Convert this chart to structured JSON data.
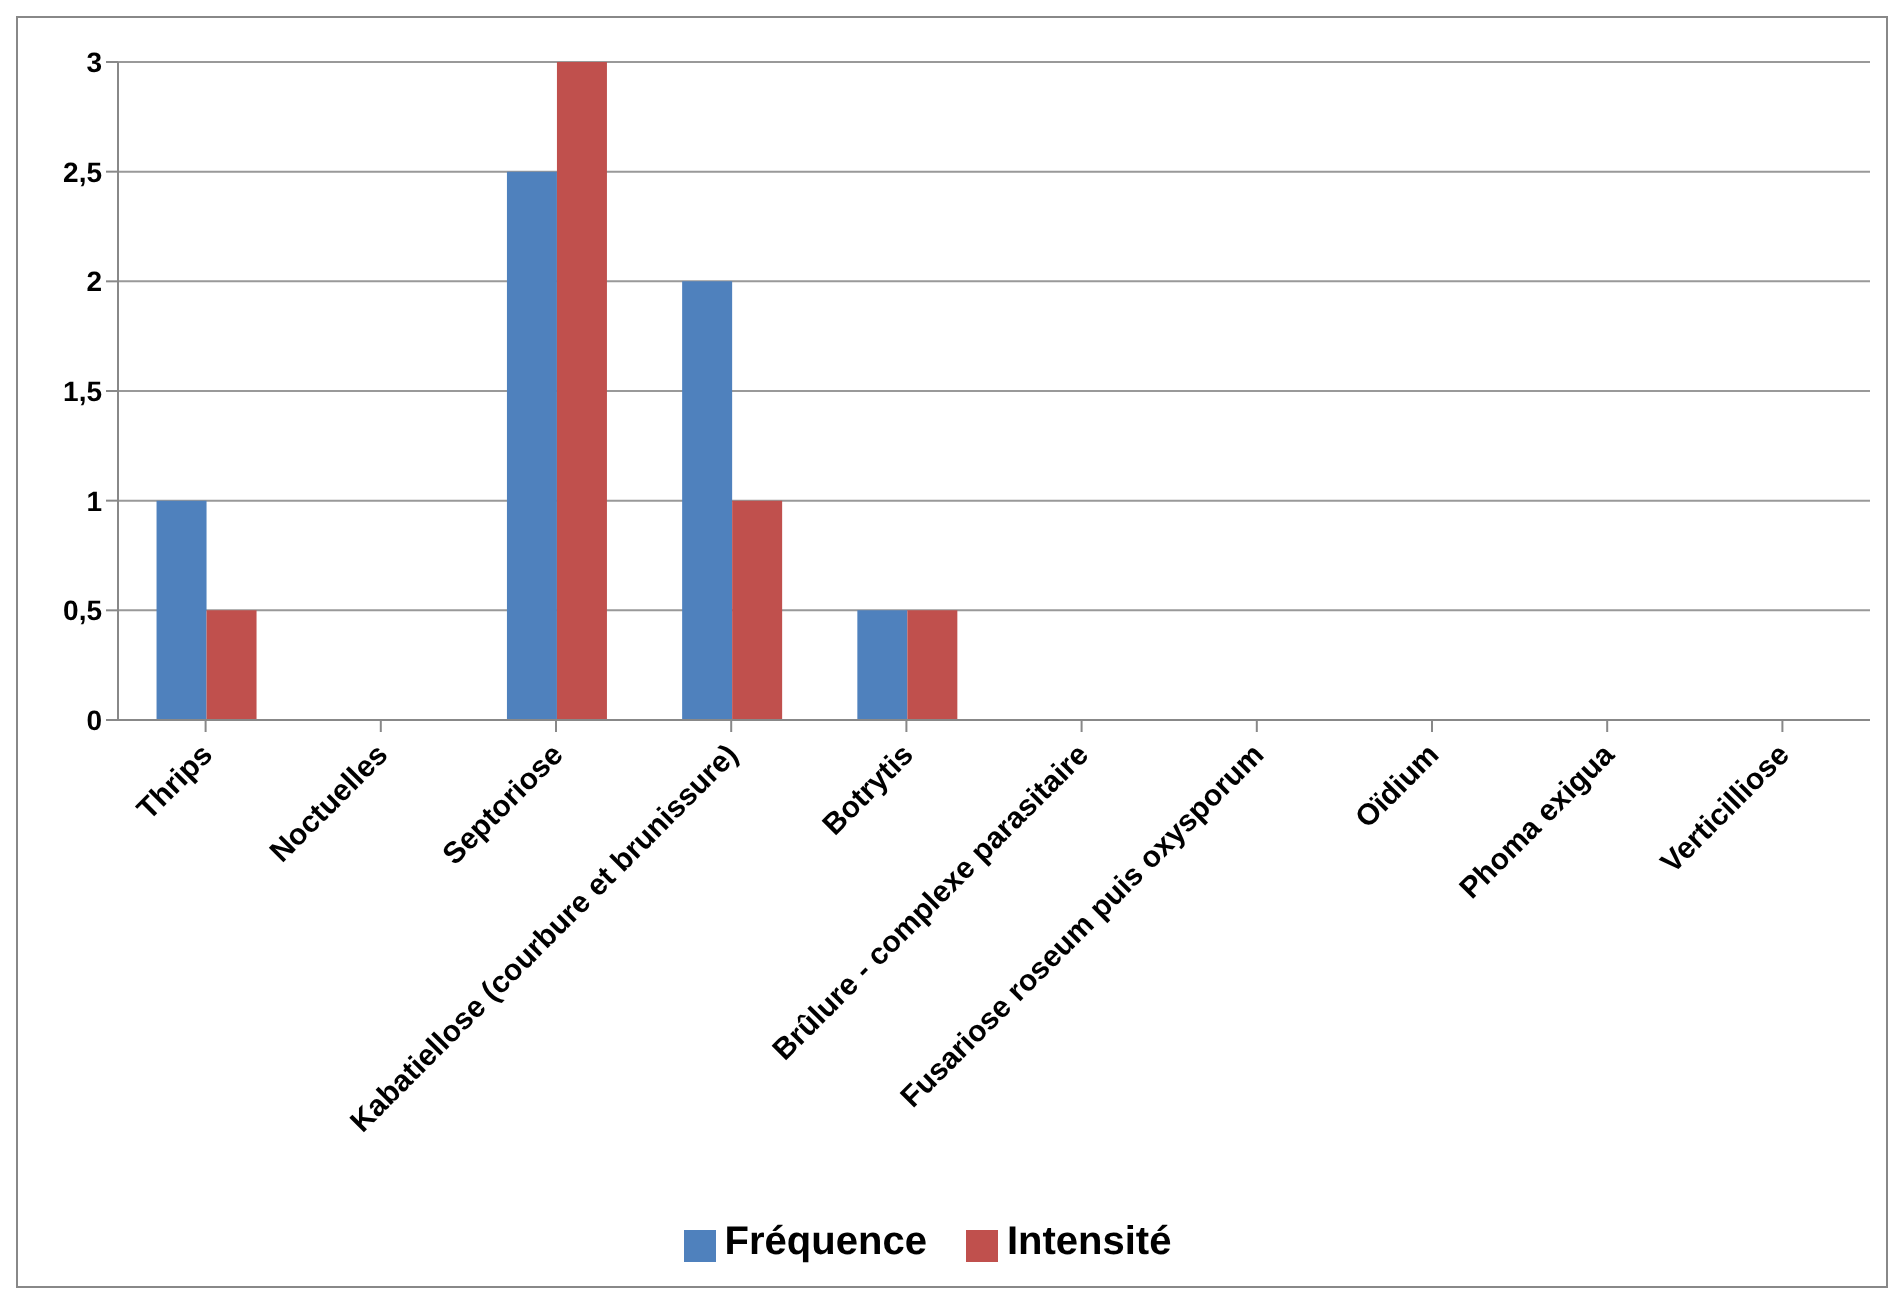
{
  "chart_data": {
    "type": "bar",
    "categories": [
      "Thrips",
      "Noctuelles",
      "Septoriose",
      "Kabatiellose (courbure et brunissure)",
      "Botrytis",
      "Brûlure - complexe parasitaire",
      "Fusariose roseum puis oxysporum",
      "Oïdium",
      "Phoma exigua",
      "Verticilliose"
    ],
    "series": [
      {
        "name": "Fréquence",
        "color": "#4f81bd",
        "values": [
          1,
          0,
          2.5,
          2,
          0.5,
          0,
          0,
          0,
          0,
          0
        ]
      },
      {
        "name": "Intensité",
        "color": "#c0504d",
        "values": [
          0.5,
          0,
          3,
          1,
          0.5,
          0,
          0,
          0,
          0,
          0
        ]
      }
    ],
    "ylim": [
      0,
      3
    ],
    "yticks": [
      0,
      {
        "value": 0.5,
        "label": "0,5"
      },
      1,
      {
        "value": 1.5,
        "label": "1,5"
      },
      2,
      {
        "value": 2.5,
        "label": "2,5"
      },
      3
    ],
    "grid": "y",
    "legend": "bottom"
  }
}
